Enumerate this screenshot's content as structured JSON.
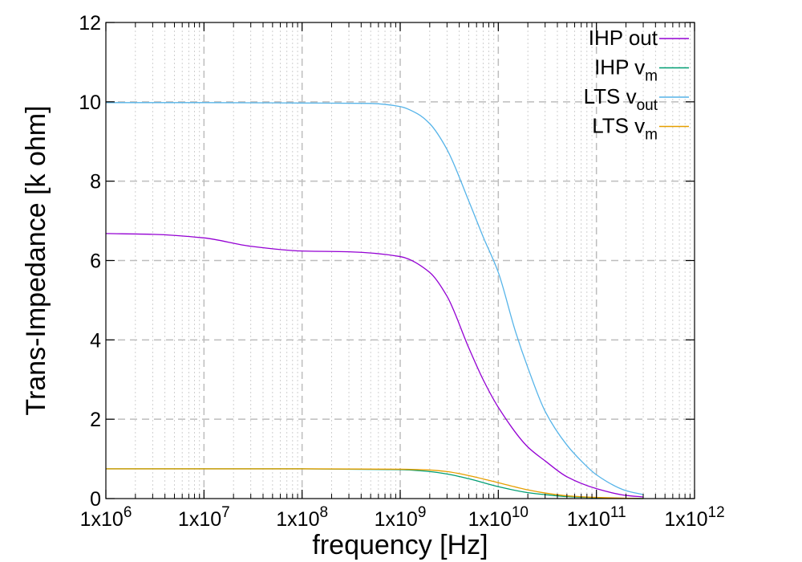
{
  "chart_data": {
    "type": "line",
    "xlabel": "frequency [Hz]",
    "ylabel": "Trans-Impedance [k ohm]",
    "x_scale": "log",
    "xlim": [
      1000000,
      1000000000000
    ],
    "ylim": [
      0,
      12
    ],
    "grid": true,
    "legend_position": "top-right",
    "x_ticks": [
      {
        "value": 1000000,
        "mantissa": "1x10",
        "exp": "6"
      },
      {
        "value": 10000000,
        "mantissa": "1x10",
        "exp": "7"
      },
      {
        "value": 100000000,
        "mantissa": "1x10",
        "exp": "8"
      },
      {
        "value": 1000000000,
        "mantissa": "1x10",
        "exp": "9"
      },
      {
        "value": 10000000000,
        "mantissa": "1x10",
        "exp": "10"
      },
      {
        "value": 100000000000,
        "mantissa": "1x10",
        "exp": "11"
      },
      {
        "value": 1000000000000,
        "mantissa": "1x10",
        "exp": "12"
      }
    ],
    "y_ticks": [
      {
        "value": 0,
        "label": "0"
      },
      {
        "value": 2,
        "label": "2"
      },
      {
        "value": 4,
        "label": "4"
      },
      {
        "value": 6,
        "label": "6"
      },
      {
        "value": 8,
        "label": "8"
      },
      {
        "value": 10,
        "label": "10"
      },
      {
        "value": 12,
        "label": "12"
      }
    ],
    "series": [
      {
        "name": "IHP out",
        "legend_main": "IHP out",
        "legend_sub": "",
        "color": "#9400d3",
        "x": [
          1000000,
          3000000,
          10000000,
          30000000,
          100000000,
          300000000,
          1000000000,
          2000000000,
          3000000000,
          5000000000,
          7000000000,
          10000000000,
          20000000000,
          30000000000,
          50000000000,
          100000000000,
          200000000000,
          300000000000
        ],
        "y": [
          6.68,
          6.66,
          6.57,
          6.36,
          6.24,
          6.22,
          6.1,
          5.7,
          5.1,
          3.8,
          3.0,
          2.3,
          1.3,
          0.95,
          0.55,
          0.25,
          0.08,
          0.04
        ]
      },
      {
        "name": "IHP vm",
        "legend_main": "IHP v",
        "legend_sub": "m",
        "color": "#009e73",
        "x": [
          1000000,
          10000000,
          100000000,
          1000000000,
          2000000000,
          3000000000,
          5000000000,
          10000000000,
          20000000000,
          30000000000,
          50000000000,
          100000000000,
          200000000000,
          300000000000
        ],
        "y": [
          0.75,
          0.75,
          0.75,
          0.73,
          0.68,
          0.62,
          0.5,
          0.3,
          0.15,
          0.1,
          0.05,
          0.02,
          0.005,
          0.0
        ]
      },
      {
        "name": "LTS vout",
        "legend_main": "LTS v",
        "legend_sub": "out",
        "color": "#56b4e9",
        "x": [
          1000000,
          10000000,
          100000000,
          500000000,
          1000000000,
          1500000000,
          2000000000,
          3000000000,
          5000000000,
          7000000000,
          10000000000,
          15000000000,
          20000000000,
          30000000000,
          50000000000,
          70000000000,
          100000000000,
          200000000000,
          300000000000
        ],
        "y": [
          9.98,
          9.98,
          9.97,
          9.96,
          9.88,
          9.7,
          9.45,
          8.8,
          7.5,
          6.6,
          5.7,
          4.2,
          3.3,
          2.2,
          1.35,
          0.95,
          0.6,
          0.2,
          0.1
        ]
      },
      {
        "name": "LTS vm",
        "legend_main": "LTS v",
        "legend_sub": "m",
        "color": "#e69f00",
        "x": [
          1000000,
          10000000,
          100000000,
          1000000000,
          2000000000,
          3000000000,
          5000000000,
          10000000000,
          20000000000,
          30000000000,
          50000000000,
          100000000000,
          200000000000,
          300000000000
        ],
        "y": [
          0.75,
          0.75,
          0.75,
          0.74,
          0.72,
          0.68,
          0.58,
          0.4,
          0.22,
          0.14,
          0.07,
          0.03,
          0.01,
          0.0
        ]
      }
    ]
  }
}
